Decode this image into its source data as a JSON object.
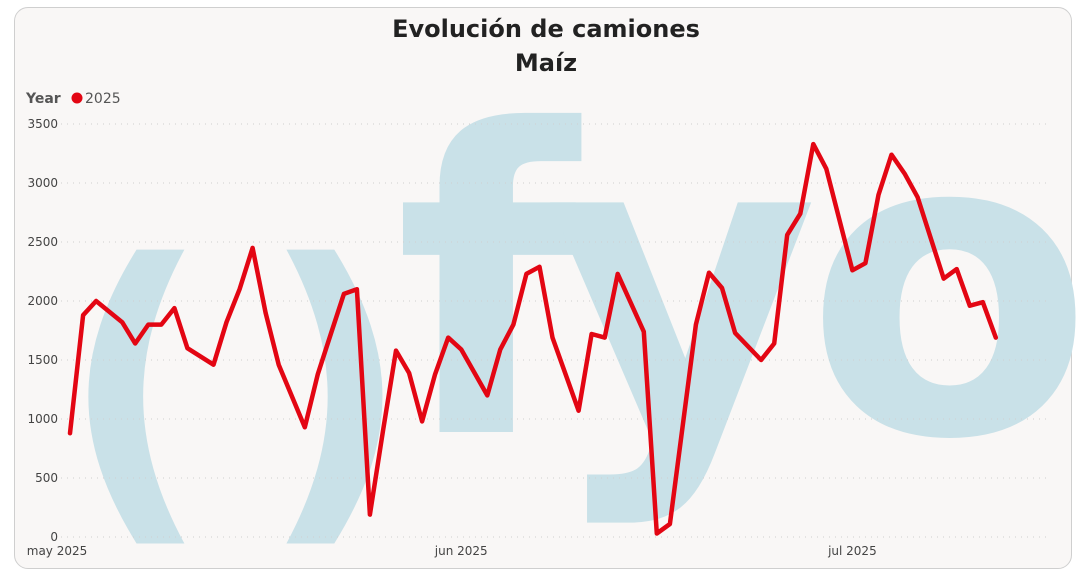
{
  "chart_data": {
    "type": "line",
    "title": "Evolución de camiones",
    "subtitle": "Maíz",
    "legend": {
      "title": "Year",
      "placement": "top-left"
    },
    "ylim": [
      0,
      3500
    ],
    "yticks": [
      0,
      500,
      1000,
      1500,
      2000,
      2500,
      3000,
      3500
    ],
    "xlim": [
      "2025-05-01",
      "2025-07-16"
    ],
    "xticks": [
      {
        "date": "2025-05-01",
        "label": "may 2025"
      },
      {
        "date": "2025-06-01",
        "label": "jun 2025"
      },
      {
        "date": "2025-07-01",
        "label": "jul 2025"
      }
    ],
    "grid": "horizontal-dotted",
    "watermark": "fyo",
    "series": [
      {
        "name": "2025",
        "color": "#e30613",
        "points": [
          [
            "2025-05-02",
            880
          ],
          [
            "2025-05-03",
            1880
          ],
          [
            "2025-05-04",
            2000
          ],
          [
            "2025-05-06",
            1820
          ],
          [
            "2025-05-07",
            1640
          ],
          [
            "2025-05-08",
            1800
          ],
          [
            "2025-05-09",
            1800
          ],
          [
            "2025-05-10",
            1940
          ],
          [
            "2025-05-11",
            1600
          ],
          [
            "2025-05-13",
            1460
          ],
          [
            "2025-05-14",
            1820
          ],
          [
            "2025-05-15",
            2100
          ],
          [
            "2025-05-16",
            2450
          ],
          [
            "2025-05-17",
            1900
          ],
          [
            "2025-05-18",
            1460
          ],
          [
            "2025-05-20",
            930
          ],
          [
            "2025-05-21",
            1380
          ],
          [
            "2025-05-22",
            1720
          ],
          [
            "2025-05-23",
            2060
          ],
          [
            "2025-05-24",
            2100
          ],
          [
            "2025-05-25",
            190
          ],
          [
            "2025-05-26",
            900
          ],
          [
            "2025-05-27",
            1580
          ],
          [
            "2025-05-28",
            1390
          ],
          [
            "2025-05-29",
            980
          ],
          [
            "2025-05-30",
            1380
          ],
          [
            "2025-05-31",
            1690
          ],
          [
            "2025-06-01",
            1590
          ],
          [
            "2025-06-03",
            1200
          ],
          [
            "2025-06-04",
            1590
          ],
          [
            "2025-06-05",
            1800
          ],
          [
            "2025-06-06",
            2230
          ],
          [
            "2025-06-07",
            2290
          ],
          [
            "2025-06-08",
            1690
          ],
          [
            "2025-06-10",
            1070
          ],
          [
            "2025-06-11",
            1720
          ],
          [
            "2025-06-12",
            1690
          ],
          [
            "2025-06-13",
            2230
          ],
          [
            "2025-06-15",
            1740
          ],
          [
            "2025-06-16",
            30
          ],
          [
            "2025-06-17",
            110
          ],
          [
            "2025-06-19",
            1800
          ],
          [
            "2025-06-20",
            2240
          ],
          [
            "2025-06-21",
            2110
          ],
          [
            "2025-06-22",
            1730
          ],
          [
            "2025-06-24",
            1500
          ],
          [
            "2025-06-25",
            1640
          ],
          [
            "2025-06-26",
            2560
          ],
          [
            "2025-06-27",
            2740
          ],
          [
            "2025-06-28",
            3330
          ],
          [
            "2025-06-29",
            3120
          ],
          [
            "2025-07-01",
            2260
          ],
          [
            "2025-07-02",
            2320
          ],
          [
            "2025-07-03",
            2900
          ],
          [
            "2025-07-04",
            3240
          ],
          [
            "2025-07-05",
            3080
          ],
          [
            "2025-07-06",
            2880
          ],
          [
            "2025-07-08",
            2190
          ],
          [
            "2025-07-09",
            2270
          ],
          [
            "2025-07-10",
            1960
          ],
          [
            "2025-07-11",
            1990
          ],
          [
            "2025-07-12",
            1690
          ]
        ]
      }
    ]
  }
}
